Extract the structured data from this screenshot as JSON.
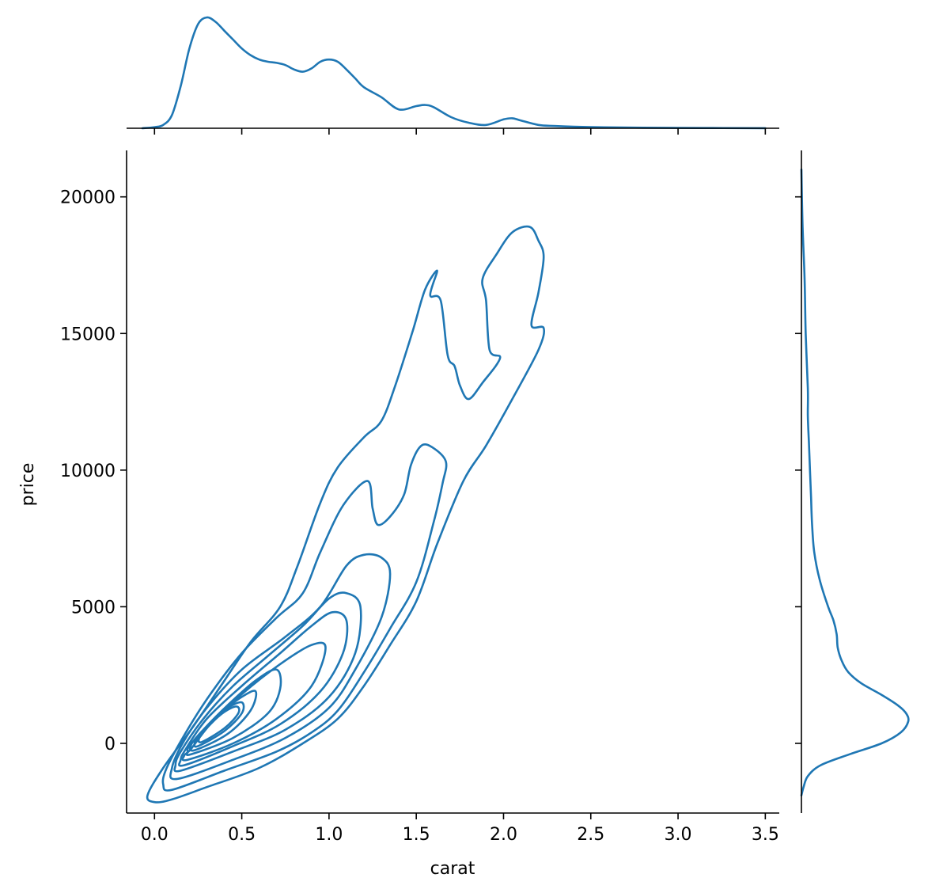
{
  "chart_data": {
    "type": "kde-joint",
    "xlabel": "carat",
    "ylabel": "price",
    "xlim": [
      -0.16,
      3.58
    ],
    "ylim": [
      -2550,
      21700
    ],
    "x_ticks": [
      0.0,
      0.5,
      1.0,
      1.5,
      2.0,
      2.5,
      3.0,
      3.5
    ],
    "x_tick_labels": [
      "0.0",
      "0.5",
      "1.0",
      "1.5",
      "2.0",
      "2.5",
      "3.0",
      "3.5"
    ],
    "y_ticks": [
      0,
      5000,
      10000,
      15000,
      20000
    ],
    "y_tick_labels": [
      "0",
      "5000",
      "10000",
      "15000",
      "20000"
    ],
    "color": "#1f77b4",
    "marginal_x": {
      "x": [
        -0.07,
        0.0,
        0.05,
        0.1,
        0.15,
        0.2,
        0.25,
        0.3,
        0.35,
        0.4,
        0.45,
        0.5,
        0.55,
        0.6,
        0.65,
        0.7,
        0.75,
        0.8,
        0.85,
        0.9,
        0.95,
        1.0,
        1.05,
        1.1,
        1.15,
        1.2,
        1.3,
        1.4,
        1.5,
        1.55,
        1.6,
        1.7,
        1.8,
        1.9,
        2.0,
        2.05,
        2.1,
        2.2,
        2.3,
        2.5,
        2.8,
        3.2,
        3.5
      ],
      "density": [
        0.0,
        0.01,
        0.03,
        0.12,
        0.38,
        0.72,
        0.94,
        1.0,
        0.96,
        0.88,
        0.8,
        0.72,
        0.66,
        0.62,
        0.6,
        0.59,
        0.57,
        0.53,
        0.51,
        0.54,
        0.6,
        0.62,
        0.6,
        0.53,
        0.45,
        0.37,
        0.28,
        0.17,
        0.2,
        0.21,
        0.19,
        0.1,
        0.05,
        0.03,
        0.08,
        0.09,
        0.07,
        0.03,
        0.02,
        0.01,
        0.005,
        0.002,
        0.001
      ]
    },
    "marginal_y": {
      "y": [
        -1900,
        -1600,
        -1200,
        -800,
        -400,
        0,
        400,
        800,
        1100,
        1400,
        1800,
        2200,
        2600,
        3000,
        3500,
        4000,
        4500,
        5000,
        6000,
        7000,
        8000,
        9000,
        10000,
        11000,
        12000,
        13000,
        15000,
        17000,
        19000,
        21000
      ],
      "density": [
        0.0,
        0.02,
        0.06,
        0.18,
        0.45,
        0.75,
        0.93,
        1.0,
        0.98,
        0.9,
        0.74,
        0.56,
        0.44,
        0.38,
        0.34,
        0.33,
        0.3,
        0.25,
        0.17,
        0.12,
        0.1,
        0.09,
        0.08,
        0.07,
        0.06,
        0.06,
        0.04,
        0.03,
        0.01,
        0.0
      ]
    },
    "contours": [
      {
        "level": 1,
        "points": [
          [
            0.0,
            -2150
          ],
          [
            0.1,
            -2050
          ],
          [
            0.3,
            -1600
          ],
          [
            0.6,
            -900
          ],
          [
            0.85,
            0
          ],
          [
            1.05,
            900
          ],
          [
            1.2,
            2100
          ],
          [
            1.35,
            3600
          ],
          [
            1.5,
            5200
          ],
          [
            1.62,
            7300
          ],
          [
            1.77,
            9600
          ],
          [
            1.9,
            10900
          ],
          [
            2.05,
            12600
          ],
          [
            2.2,
            14400
          ],
          [
            2.23,
            15200
          ],
          [
            2.16,
            15300
          ],
          [
            2.2,
            16500
          ],
          [
            2.23,
            17800
          ],
          [
            2.2,
            18400
          ],
          [
            2.15,
            18900
          ],
          [
            2.05,
            18700
          ],
          [
            1.96,
            17900
          ],
          [
            1.88,
            17000
          ],
          [
            1.9,
            16200
          ],
          [
            1.92,
            14400
          ],
          [
            1.98,
            14100
          ],
          [
            1.88,
            13200
          ],
          [
            1.8,
            12600
          ],
          [
            1.75,
            13100
          ],
          [
            1.72,
            13800
          ],
          [
            1.68,
            14200
          ],
          [
            1.64,
            16200
          ],
          [
            1.58,
            16400
          ],
          [
            1.62,
            17300
          ],
          [
            1.55,
            16600
          ],
          [
            1.48,
            15100
          ],
          [
            1.38,
            13100
          ],
          [
            1.3,
            11800
          ],
          [
            1.2,
            11200
          ],
          [
            1.05,
            10100
          ],
          [
            0.95,
            8800
          ],
          [
            0.82,
            6500
          ],
          [
            0.72,
            5000
          ],
          [
            0.55,
            3700
          ],
          [
            0.38,
            2100
          ],
          [
            0.22,
            600
          ],
          [
            0.05,
            -900
          ],
          [
            -0.04,
            -1900
          ],
          [
            0.0,
            -2150
          ]
        ]
      },
      {
        "level": 2,
        "points": [
          [
            0.1,
            -1700
          ],
          [
            0.4,
            -1000
          ],
          [
            0.7,
            -300
          ],
          [
            0.9,
            400
          ],
          [
            1.05,
            1200
          ],
          [
            1.2,
            2600
          ],
          [
            1.35,
            4200
          ],
          [
            1.5,
            5900
          ],
          [
            1.6,
            8100
          ],
          [
            1.65,
            9500
          ],
          [
            1.67,
            10300
          ],
          [
            1.6,
            10800
          ],
          [
            1.53,
            10900
          ],
          [
            1.47,
            10200
          ],
          [
            1.43,
            9100
          ],
          [
            1.35,
            8300
          ],
          [
            1.28,
            8000
          ],
          [
            1.25,
            8600
          ],
          [
            1.22,
            9600
          ],
          [
            1.08,
            8700
          ],
          [
            0.95,
            7000
          ],
          [
            0.85,
            5500
          ],
          [
            0.7,
            4600
          ],
          [
            0.5,
            3300
          ],
          [
            0.32,
            1800
          ],
          [
            0.18,
            400
          ],
          [
            0.07,
            -900
          ],
          [
            0.05,
            -1500
          ],
          [
            0.1,
            -1700
          ]
        ]
      },
      {
        "level": 3,
        "points": [
          [
            0.13,
            -1300
          ],
          [
            0.45,
            -600
          ],
          [
            0.75,
            200
          ],
          [
            1.0,
            1300
          ],
          [
            1.15,
            2700
          ],
          [
            1.3,
            4600
          ],
          [
            1.35,
            6200
          ],
          [
            1.3,
            6800
          ],
          [
            1.2,
            6900
          ],
          [
            1.1,
            6500
          ],
          [
            0.95,
            5000
          ],
          [
            0.75,
            3900
          ],
          [
            0.5,
            2700
          ],
          [
            0.3,
            1300
          ],
          [
            0.17,
            100
          ],
          [
            0.1,
            -900
          ],
          [
            0.13,
            -1300
          ]
        ]
      },
      {
        "level": 4,
        "points": [
          [
            0.15,
            -1000
          ],
          [
            0.45,
            -300
          ],
          [
            0.75,
            500
          ],
          [
            1.0,
            1700
          ],
          [
            1.15,
            3300
          ],
          [
            1.18,
            5000
          ],
          [
            1.1,
            5500
          ],
          [
            1.0,
            5300
          ],
          [
            0.85,
            4300
          ],
          [
            0.65,
            3200
          ],
          [
            0.45,
            2100
          ],
          [
            0.28,
            900
          ],
          [
            0.15,
            -300
          ],
          [
            0.12,
            -800
          ],
          [
            0.15,
            -1000
          ]
        ]
      },
      {
        "level": 5,
        "points": [
          [
            0.17,
            -800
          ],
          [
            0.45,
            -100
          ],
          [
            0.72,
            700
          ],
          [
            0.95,
            1900
          ],
          [
            1.08,
            3300
          ],
          [
            1.1,
            4500
          ],
          [
            1.02,
            4800
          ],
          [
            0.9,
            4300
          ],
          [
            0.72,
            3300
          ],
          [
            0.5,
            2100
          ],
          [
            0.3,
            900
          ],
          [
            0.18,
            -200
          ],
          [
            0.15,
            -600
          ],
          [
            0.17,
            -800
          ]
        ]
      },
      {
        "level": 6,
        "points": [
          [
            0.19,
            -600
          ],
          [
            0.45,
            0
          ],
          [
            0.7,
            900
          ],
          [
            0.9,
            2100
          ],
          [
            0.98,
            3500
          ],
          [
            0.9,
            3600
          ],
          [
            0.72,
            2900
          ],
          [
            0.5,
            1800
          ],
          [
            0.32,
            700
          ],
          [
            0.21,
            -200
          ],
          [
            0.17,
            -450
          ],
          [
            0.19,
            -600
          ]
        ]
      },
      {
        "level": 7,
        "points": [
          [
            0.21,
            -400
          ],
          [
            0.45,
            200
          ],
          [
            0.65,
            1100
          ],
          [
            0.72,
            2000
          ],
          [
            0.7,
            2700
          ],
          [
            0.58,
            2300
          ],
          [
            0.42,
            1400
          ],
          [
            0.28,
            500
          ],
          [
            0.2,
            -100
          ],
          [
            0.19,
            -300
          ],
          [
            0.21,
            -400
          ]
        ]
      },
      {
        "level": 8,
        "points": [
          [
            0.23,
            -250
          ],
          [
            0.42,
            350
          ],
          [
            0.55,
            1200
          ],
          [
            0.58,
            1900
          ],
          [
            0.5,
            1700
          ],
          [
            0.38,
            1100
          ],
          [
            0.27,
            400
          ],
          [
            0.21,
            -50
          ],
          [
            0.23,
            -250
          ]
        ]
      },
      {
        "level": 9,
        "points": [
          [
            0.25,
            -100
          ],
          [
            0.4,
            450
          ],
          [
            0.5,
            1100
          ],
          [
            0.5,
            1500
          ],
          [
            0.42,
            1300
          ],
          [
            0.33,
            800
          ],
          [
            0.25,
            200
          ],
          [
            0.23,
            0
          ],
          [
            0.25,
            -100
          ]
        ]
      },
      {
        "level": 10,
        "points": [
          [
            0.27,
            50
          ],
          [
            0.4,
            550
          ],
          [
            0.48,
            1100
          ],
          [
            0.47,
            1350
          ],
          [
            0.4,
            1150
          ],
          [
            0.32,
            700
          ],
          [
            0.26,
            250
          ],
          [
            0.27,
            50
          ]
        ]
      }
    ]
  }
}
